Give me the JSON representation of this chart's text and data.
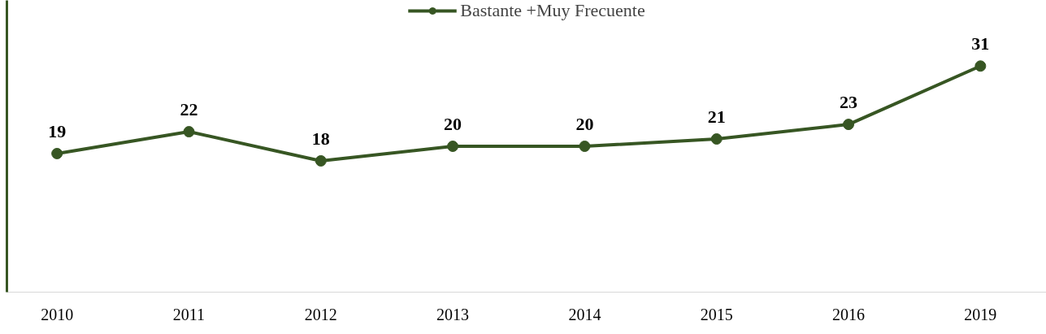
{
  "chart_data": {
    "type": "line",
    "categories": [
      "2010",
      "2011",
      "2012",
      "2013",
      "2014",
      "2015",
      "2016",
      "2019"
    ],
    "series": [
      {
        "name": "Bastante +Muy Frecuente",
        "color": "#375623",
        "values": [
          19,
          22,
          18,
          20,
          20,
          21,
          23,
          31
        ]
      }
    ],
    "ylim": [
      0,
      40
    ],
    "data_labels": true,
    "marker": "circle",
    "line_style": "solid",
    "legend": "top",
    "grid": false
  }
}
